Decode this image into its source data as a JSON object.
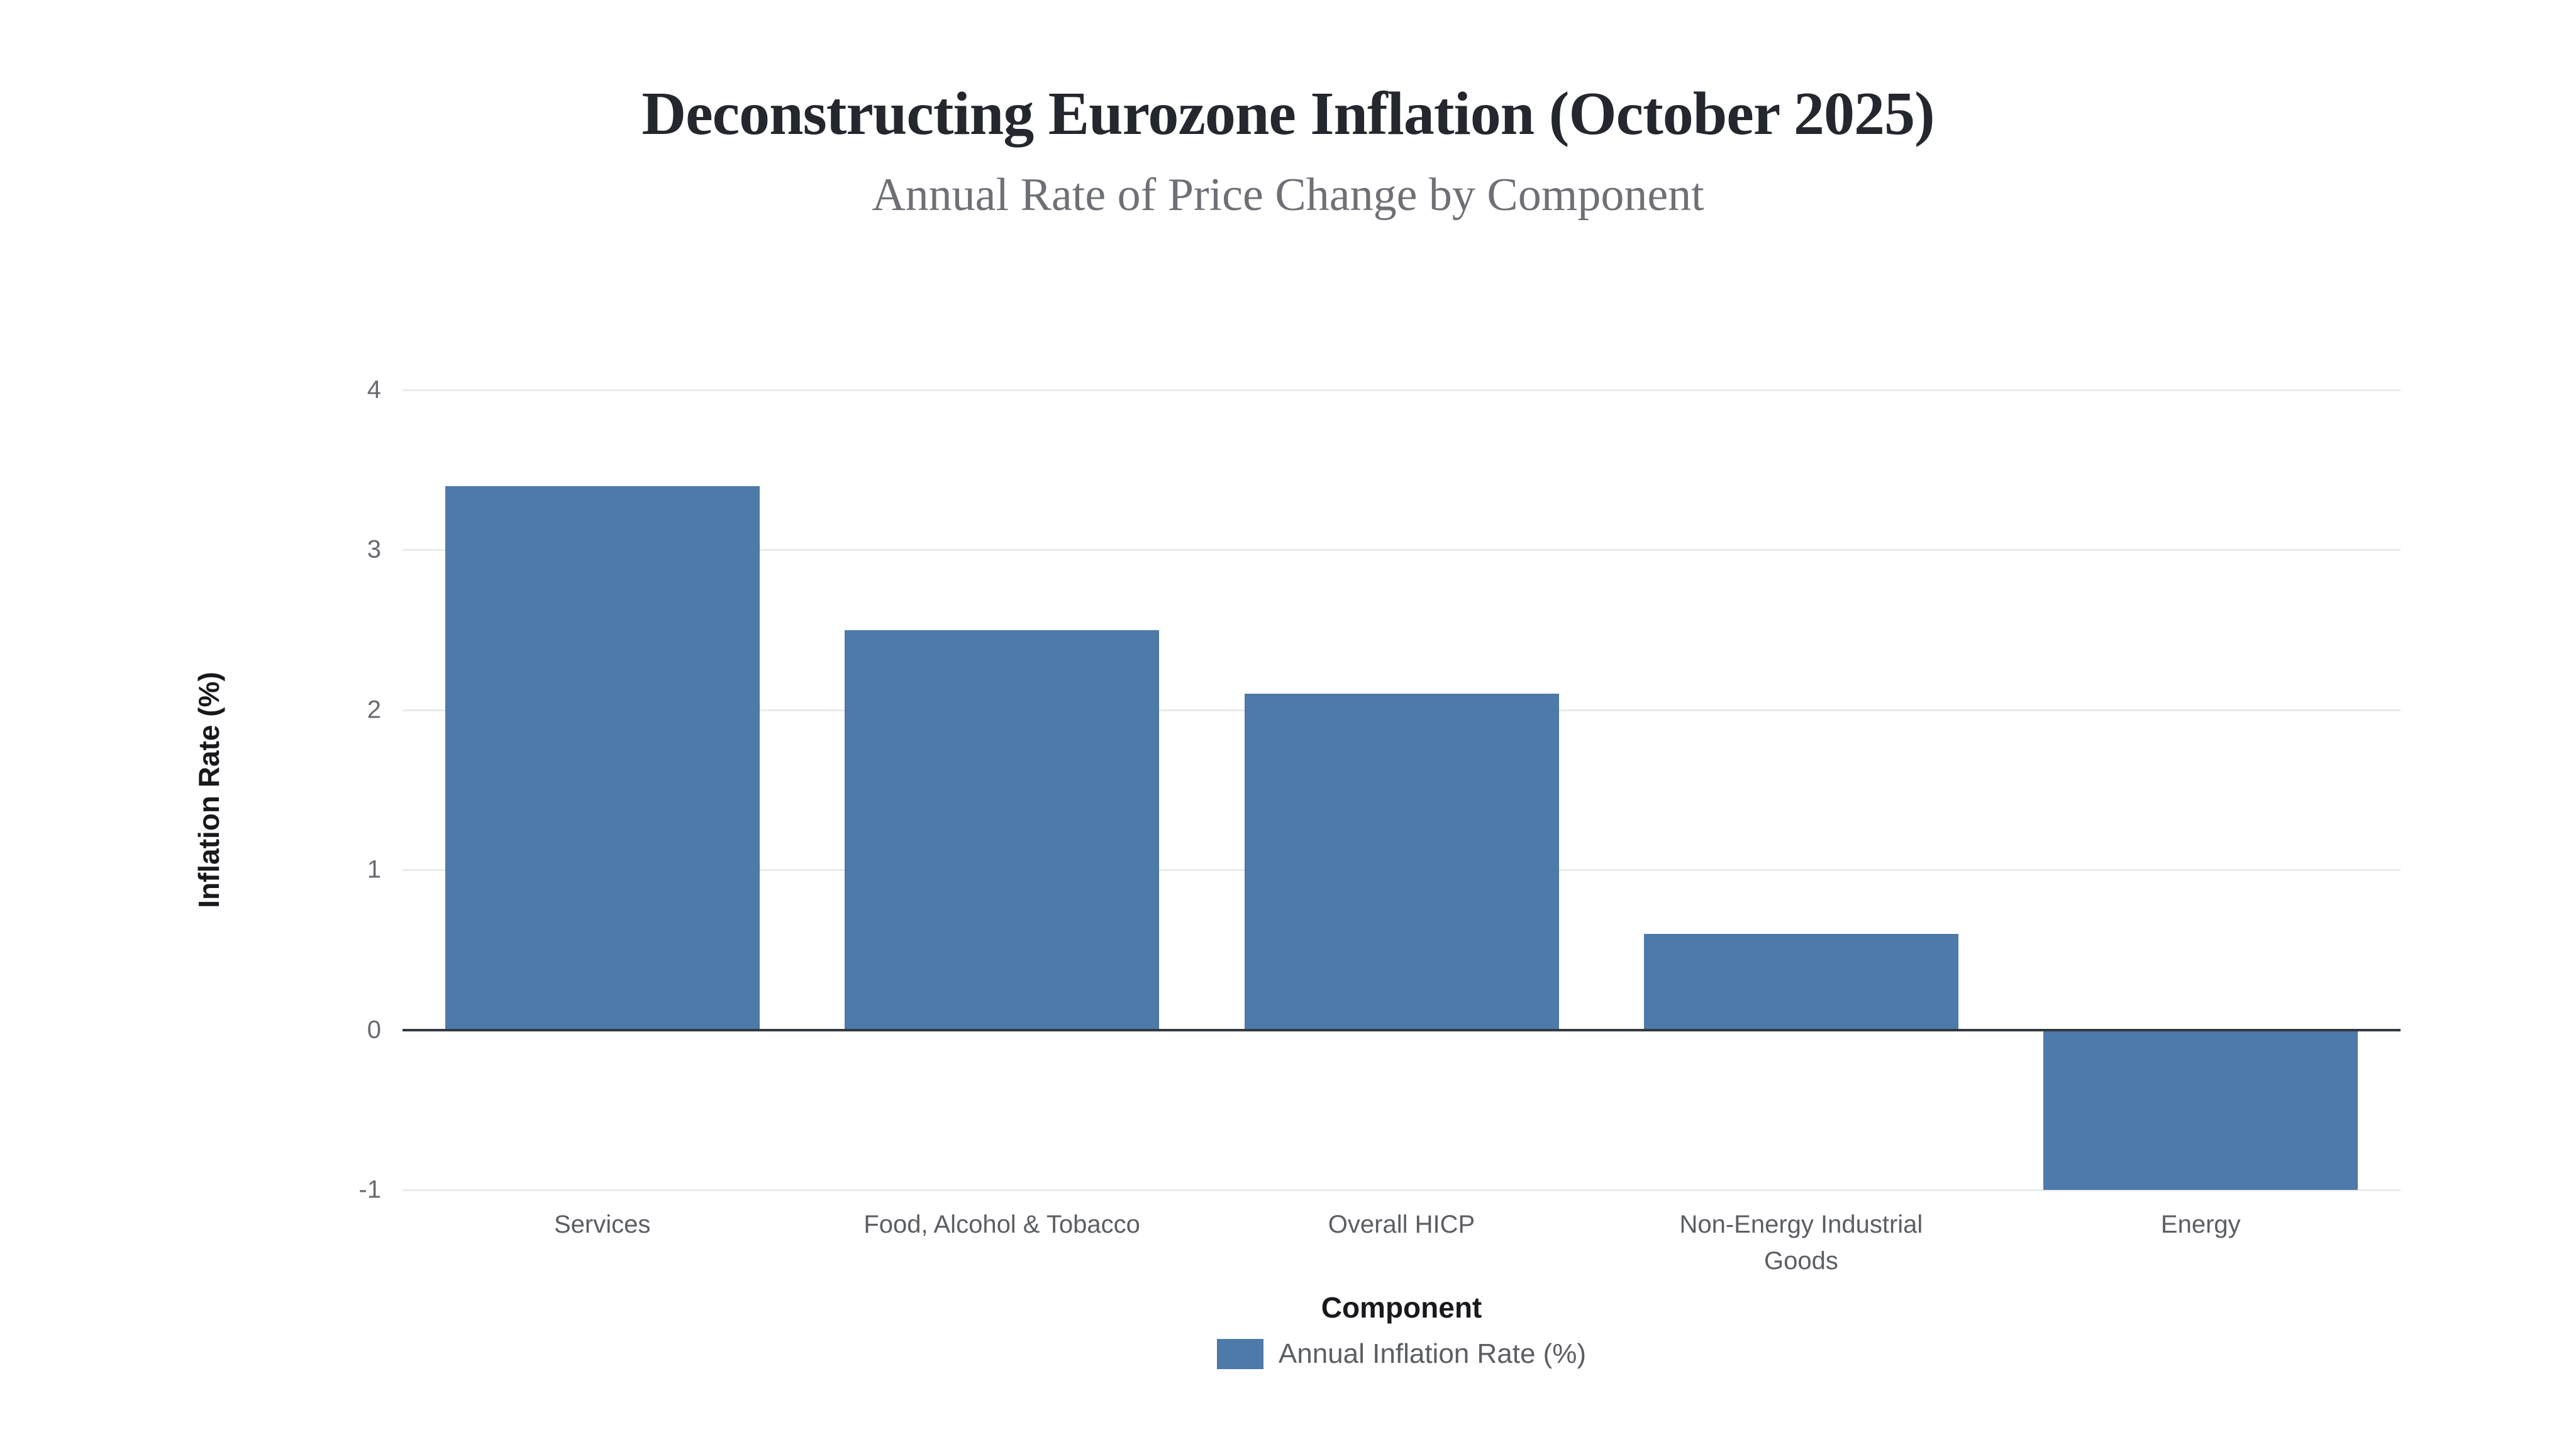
{
  "page": {
    "background_color": "#ffffff"
  },
  "chart_data": {
    "type": "bar",
    "title": "Deconstructing Eurozone Inflation (October 2025)",
    "subtitle": "Annual Rate of Price Change by Component",
    "xlabel": "Component",
    "ylabel": "Inflation Rate (%)",
    "categories": [
      "Services",
      "Food, Alcohol & Tobacco",
      "Overall HICP",
      "Non-Energy Industrial\nGoods",
      "Energy"
    ],
    "values": [
      3.4,
      2.5,
      2.1,
      0.6,
      -1.0
    ],
    "series": [
      {
        "name": "Annual Inflation Rate (%)",
        "values": [
          3.4,
          2.5,
          2.1,
          0.6,
          -1.0
        ]
      }
    ],
    "yticks": [
      4,
      3,
      2,
      1,
      0,
      -1
    ],
    "ylim": [
      -1,
      4
    ],
    "grid": true,
    "zero_baseline": true,
    "legend_position": "bottom",
    "legend": [
      {
        "label": "Annual Inflation Rate (%)",
        "color": "#4d7aa8"
      }
    ],
    "colors": {
      "bar": "#4d7aa8",
      "gridline": "#e9eaee",
      "zero_line": "#343940",
      "title": "#24272e",
      "subtitle": "#6e7076",
      "tick_label": "#66696e",
      "category_label": "#5b5e63",
      "axis_title": "#17191d",
      "legend_text": "#5b5e63"
    }
  }
}
